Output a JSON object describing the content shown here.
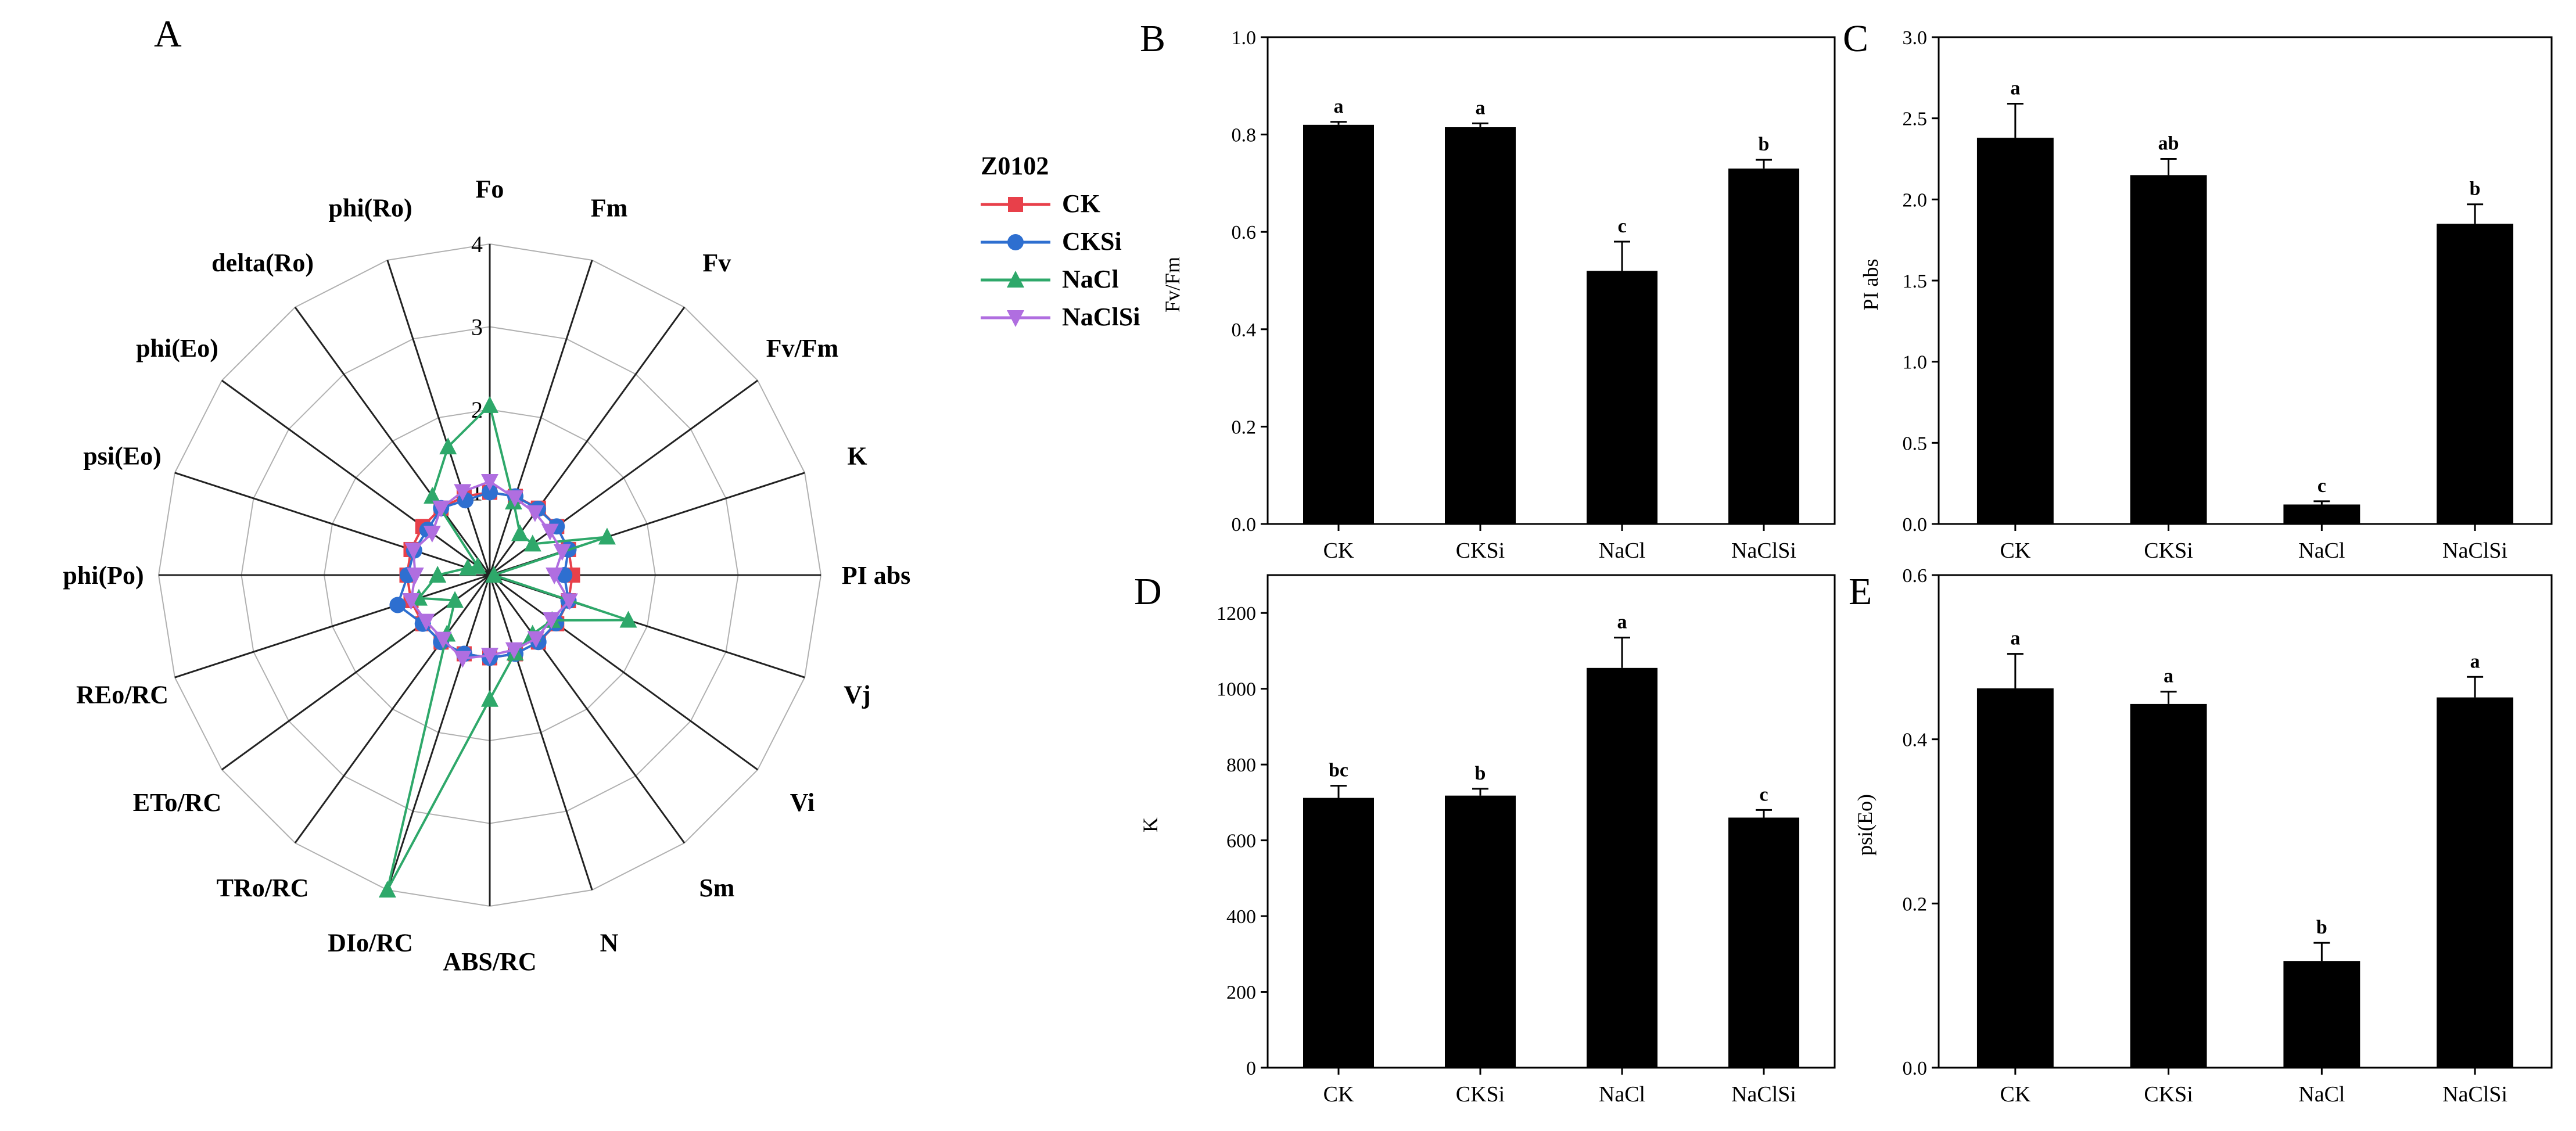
{
  "chart_data": [
    {
      "panel": "A",
      "type": "radar",
      "legend_title": "Z0102",
      "axes": [
        "Fo",
        "Fm",
        "Fv",
        "Fv/Fm",
        "K",
        "PI abs",
        "Vj",
        "Vi",
        "Sm",
        "N",
        "ABS/RC",
        "DIo/RC",
        "TRo/RC",
        "ETo/RC",
        "REo/RC",
        "phi(Po)",
        "psi(Eo)",
        "phi(Eo)",
        "delta(Ro)",
        "phi(Ro)"
      ],
      "rlim": [
        0,
        4
      ],
      "rticks": [
        "1",
        "2",
        "3",
        "4"
      ],
      "series": [
        {
          "name": "CK",
          "color": "#e8404a",
          "marker": "square",
          "values": [
            1,
            1,
            1,
            1,
            1,
            1,
            1,
            1,
            1,
            1,
            1,
            1,
            1,
            1,
            1,
            1,
            1,
            1,
            1,
            1
          ]
        },
        {
          "name": "CKSi",
          "color": "#2e6fd0",
          "marker": "circle",
          "values": [
            1.0,
            1.0,
            0.99,
            1.0,
            1.0,
            0.9,
            1.0,
            0.99,
            1.0,
            1.0,
            1.0,
            1.0,
            1.0,
            1.0,
            1.17,
            0.99,
            0.96,
            0.93,
            1.0,
            0.95
          ]
        },
        {
          "name": "NaCl",
          "color": "#2ea86a",
          "marker": "triangle-up",
          "values": [
            2.05,
            0.93,
            0.62,
            0.64,
            1.49,
            0.05,
            1.76,
            0.93,
            0.88,
            0.99,
            1.5,
            4.0,
            0.88,
            0.52,
            0.9,
            0.63,
            0.28,
            0.18,
            1.18,
            1.63
          ]
        },
        {
          "name": "NaClSi",
          "color": "#b06ee0",
          "marker": "triangle-down",
          "values": [
            1.13,
            0.98,
            0.93,
            0.9,
            0.92,
            0.78,
            1.01,
            0.92,
            0.95,
            0.95,
            0.97,
            1.06,
            0.96,
            0.95,
            1.0,
            0.9,
            0.97,
            0.86,
            1.0,
            1.06
          ]
        }
      ]
    },
    {
      "panel": "B",
      "type": "bar",
      "ylabel": "Fv/Fm",
      "ylim": [
        0,
        1.0
      ],
      "yticks": [
        "0.0",
        "0.2",
        "0.4",
        "0.6",
        "0.8",
        "1.0"
      ],
      "categories": [
        "CK",
        "CKSi",
        "NaCl",
        "NaClSi"
      ],
      "values": [
        0.82,
        0.815,
        0.52,
        0.73
      ],
      "errors": [
        0.006,
        0.008,
        0.06,
        0.018
      ],
      "letters": [
        "a",
        "a",
        "c",
        "b"
      ]
    },
    {
      "panel": "C",
      "type": "bar",
      "ylabel": "PI abs",
      "ylim": [
        0,
        3.0
      ],
      "yticks": [
        "0.0",
        "0.5",
        "1.0",
        "1.5",
        "2.0",
        "2.5",
        "3.0"
      ],
      "categories": [
        "CK",
        "CKSi",
        "NaCl",
        "NaClSi"
      ],
      "values": [
        2.38,
        2.15,
        0.12,
        1.85
      ],
      "errors": [
        0.21,
        0.1,
        0.02,
        0.12
      ],
      "letters": [
        "a",
        "ab",
        "c",
        "b"
      ]
    },
    {
      "panel": "D",
      "type": "bar",
      "ylabel": "K",
      "ylim": [
        0,
        1300
      ],
      "yticks": [
        "0",
        "200",
        "400",
        "600",
        "800",
        "1000",
        "1200"
      ],
      "categories": [
        "CK",
        "CKSi",
        "NaCl",
        "NaClSi"
      ],
      "values": [
        712,
        718,
        1055,
        660
      ],
      "errors": [
        32,
        18,
        80,
        20
      ],
      "letters": [
        "bc",
        "b",
        "a",
        "c"
      ]
    },
    {
      "panel": "E",
      "type": "bar",
      "ylabel": "psi(Eo)",
      "ylim": [
        0,
        0.6
      ],
      "yticks": [
        "0.0",
        "0.2",
        "0.4",
        "0.6"
      ],
      "categories": [
        "CK",
        "CKSi",
        "NaCl",
        "NaClSi"
      ],
      "values": [
        0.462,
        0.443,
        0.13,
        0.451
      ],
      "errors": [
        0.042,
        0.015,
        0.022,
        0.025
      ],
      "letters": [
        "a",
        "a",
        "b",
        "a"
      ]
    }
  ]
}
